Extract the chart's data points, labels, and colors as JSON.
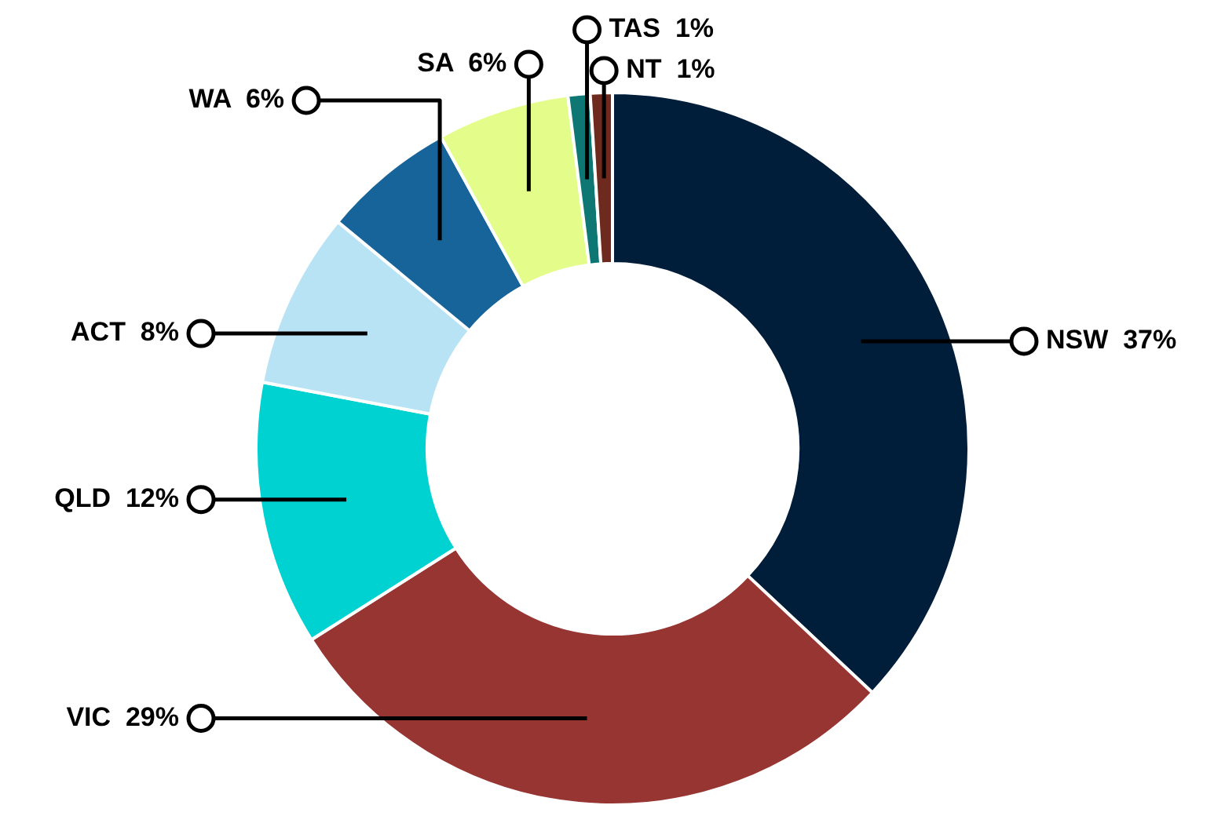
{
  "chart_data": {
    "type": "donut",
    "categories": [
      "NSW",
      "VIC",
      "QLD",
      "ACT",
      "WA",
      "SA",
      "TAS",
      "NT"
    ],
    "values": [
      37,
      29,
      12,
      8,
      6,
      6,
      1,
      1
    ],
    "value_labels": [
      "37%",
      "29%",
      "12%",
      "8%",
      "6%",
      "6%",
      "1%",
      "1%"
    ],
    "colors": [
      "#001d3a",
      "#973533",
      "#00d2d2",
      "#b8e3f5",
      "#17649a",
      "#e3fc8a",
      "#0f7773",
      "#6e2a1e"
    ],
    "legend": false
  }
}
